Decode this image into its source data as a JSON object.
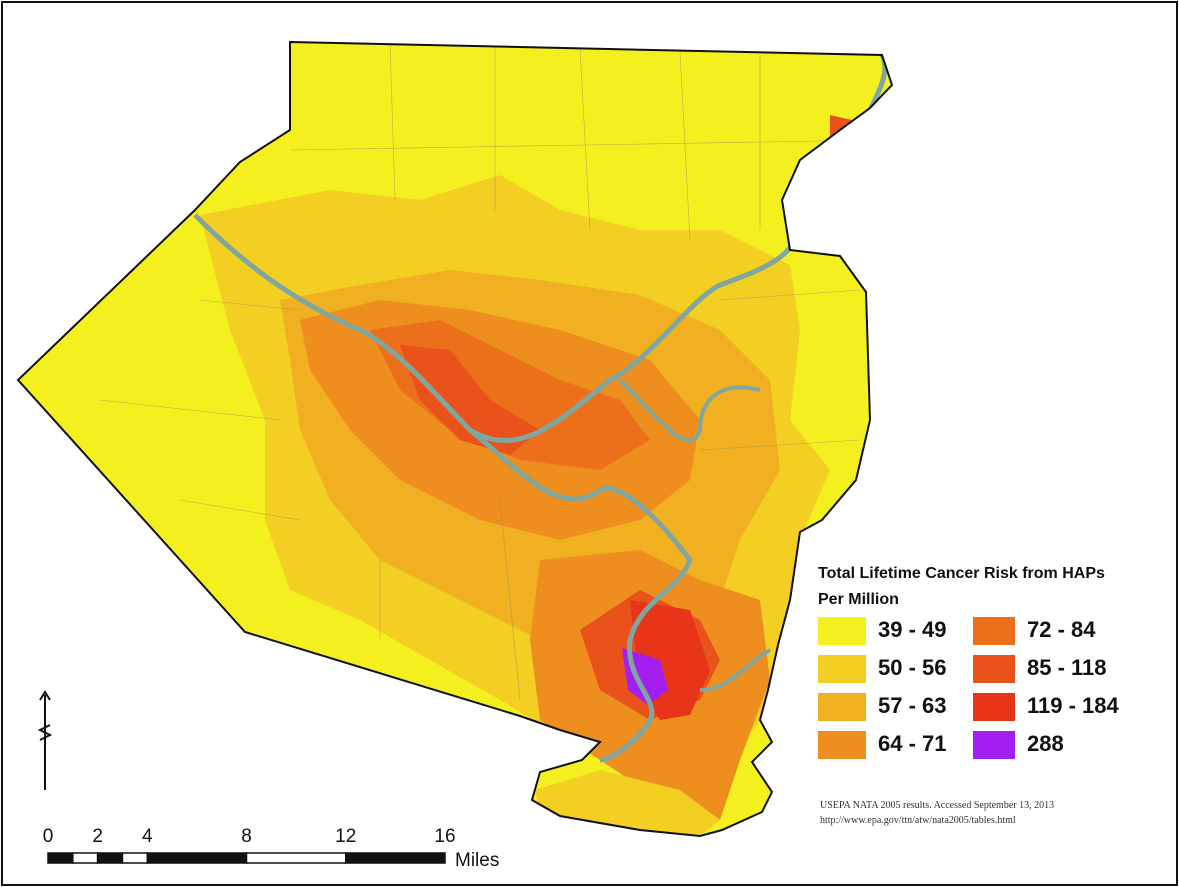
{
  "legend": {
    "title": "Total Lifetime Cancer Risk from HAPs",
    "subtitle": "Per Million",
    "items": [
      {
        "label": "39 - 49",
        "color": "#f4ef1f"
      },
      {
        "label": "50 - 56",
        "color": "#f2cf22"
      },
      {
        "label": "57 - 63",
        "color": "#f0b021"
      },
      {
        "label": "64 - 71",
        "color": "#ee8e1e"
      },
      {
        "label": "72 - 84",
        "color": "#ec701c"
      },
      {
        "label": "85 - 118",
        "color": "#e9521a"
      },
      {
        "label": "119 - 184",
        "color": "#e83418"
      },
      {
        "label": "288",
        "color": "#a21ff0"
      }
    ]
  },
  "scale": {
    "ticks": [
      0,
      2,
      4,
      8,
      12,
      16
    ],
    "unit": "Miles"
  },
  "source": [
    "USEPA NATA 2005 results. Accessed September 13, 2013",
    "http://www.epa.gov/ttn/atw/nata2005/tables.html"
  ]
}
